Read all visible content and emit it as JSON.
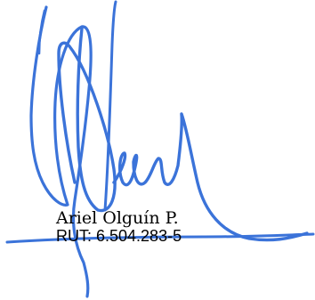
{
  "signer": {
    "name": "Ariel Olguín P.",
    "rut": "RUT: 6.504.283-5"
  },
  "colors": {
    "ink": "#3b73d9",
    "text": "#000000",
    "background": "#ffffff"
  },
  "icons": {
    "signature": "handwritten-signature-icon"
  }
}
